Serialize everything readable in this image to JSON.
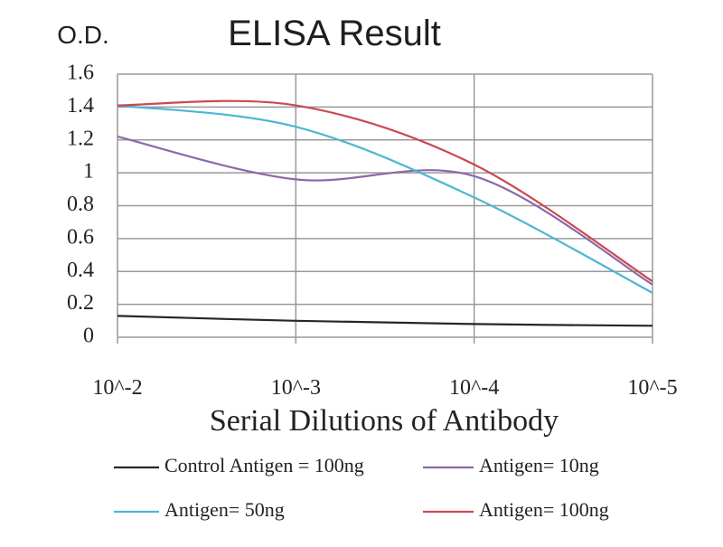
{
  "chart_data": {
    "type": "line",
    "title": "ELISA Result",
    "ylabel": "O.D.",
    "xlabel": "Serial Dilutions of Antibody",
    "categories": [
      "10^-2",
      "10^-3",
      "10^-4",
      "10^-5"
    ],
    "ylim": [
      0,
      1.6
    ],
    "yticks": [
      {
        "value": 0,
        "label": "0"
      },
      {
        "value": 0.2,
        "label": "0.2"
      },
      {
        "value": 0.4,
        "label": "0.4"
      },
      {
        "value": 0.6,
        "label": "0.6"
      },
      {
        "value": 0.8,
        "label": "0.8"
      },
      {
        "value": 1.0,
        "label": "1"
      },
      {
        "value": 1.2,
        "label": "1.2"
      },
      {
        "value": 1.4,
        "label": "1.4"
      },
      {
        "value": 1.6,
        "label": "1.6"
      }
    ],
    "grid": true,
    "legend_position": "bottom",
    "series": [
      {
        "name": "Control Antigen = 100ng",
        "color": "#262626",
        "values": [
          0.13,
          0.1,
          0.08,
          0.07
        ]
      },
      {
        "name": "Antigen= 10ng",
        "color": "#8c68a8",
        "values": [
          1.22,
          0.96,
          0.98,
          0.32
        ]
      },
      {
        "name": "Antigen= 50ng",
        "color": "#4fb6d3",
        "values": [
          1.41,
          1.28,
          0.85,
          0.27
        ]
      },
      {
        "name": "Antigen= 100ng",
        "color": "#c94a4f",
        "values": [
          1.41,
          1.41,
          1.05,
          0.34
        ]
      }
    ]
  }
}
